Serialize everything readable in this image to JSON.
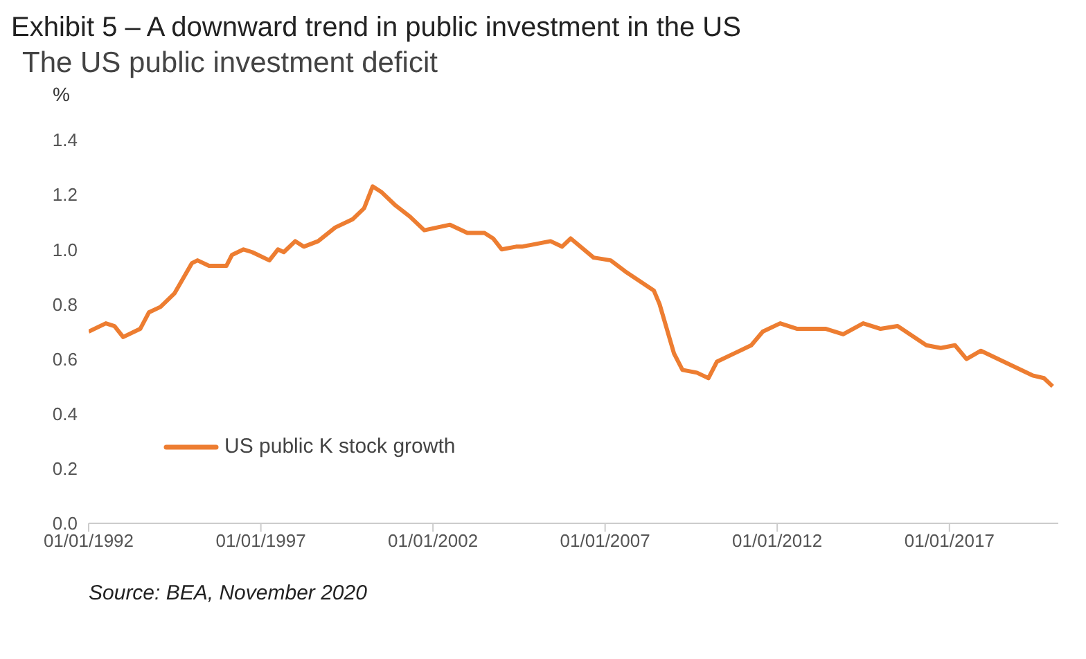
{
  "chart_data": {
    "type": "line",
    "title": "Exhibit 5 – A downward trend in public investment in the US",
    "subtitle": "The US public investment deficit",
    "ylabel": "%",
    "x": [
      "1992-01",
      "1992-07",
      "1992-10",
      "1993-01",
      "1993-07",
      "1993-10",
      "1994-02",
      "1994-07",
      "1995-01",
      "1995-03",
      "1995-07",
      "1996-01",
      "1996-03",
      "1996-07",
      "1996-10",
      "1997-04",
      "1997-07",
      "1997-09",
      "1998-01",
      "1998-04",
      "1998-09",
      "1999-03",
      "1999-09",
      "2000-01",
      "2000-04",
      "2000-07",
      "2000-12",
      "2001-05",
      "2001-10",
      "2002-07",
      "2003-01",
      "2003-07",
      "2003-10",
      "2004-01",
      "2004-06",
      "2004-08",
      "2005-06",
      "2005-10",
      "2006-01",
      "2006-09",
      "2007-03",
      "2007-08",
      "2008-06",
      "2008-08",
      "2009-01",
      "2009-04",
      "2009-09",
      "2010-01",
      "2010-04",
      "2010-10",
      "2011-04",
      "2011-08",
      "2012-02",
      "2012-08",
      "2013-06",
      "2013-12",
      "2014-07",
      "2015-01",
      "2015-07",
      "2016-05",
      "2016-10",
      "2017-03",
      "2017-07",
      "2017-12",
      "2018-10",
      "2019-06",
      "2019-10",
      "2020-01"
    ],
    "series": [
      {
        "name": "US public K stock growth",
        "color": "#ed7d31",
        "values": [
          0.7,
          0.73,
          0.72,
          0.68,
          0.71,
          0.77,
          0.79,
          0.84,
          0.95,
          0.96,
          0.94,
          0.94,
          0.98,
          1.0,
          0.99,
          0.96,
          1.0,
          0.99,
          1.03,
          1.01,
          1.03,
          1.08,
          1.11,
          1.15,
          1.23,
          1.21,
          1.16,
          1.12,
          1.07,
          1.09,
          1.06,
          1.06,
          1.04,
          1.0,
          1.01,
          1.01,
          1.03,
          1.01,
          1.04,
          0.97,
          0.96,
          0.92,
          0.85,
          0.8,
          0.62,
          0.56,
          0.55,
          0.53,
          0.59,
          0.62,
          0.65,
          0.7,
          0.73,
          0.71,
          0.71,
          0.69,
          0.73,
          0.71,
          0.72,
          0.65,
          0.64,
          0.65,
          0.6,
          0.63,
          0.58,
          0.54,
          0.53,
          0.5
        ]
      }
    ],
    "xlim": [
      "1992-01-01",
      "2020-03-01"
    ],
    "xticks": [
      {
        "value": "1992-01-01",
        "label": "01/01/1992"
      },
      {
        "value": "1997-01-01",
        "label": "01/01/1997"
      },
      {
        "value": "2002-01-01",
        "label": "01/01/2002"
      },
      {
        "value": "2007-01-01",
        "label": "01/01/2007"
      },
      {
        "value": "2012-01-01",
        "label": "01/01/2012"
      },
      {
        "value": "2017-01-01",
        "label": "01/01/2017"
      }
    ],
    "ylim": [
      0,
      1.4
    ],
    "yticks": [
      {
        "value": 0,
        "label": "0.0"
      },
      0.2,
      0.4,
      0.6,
      0.8,
      {
        "value": 1,
        "label": "1.0"
      },
      1.2,
      1.4
    ],
    "grid": false,
    "legend": "bottom left",
    "marker": "none",
    "line_style": "solid",
    "annotations": [
      "Source: BEA, November 2020"
    ]
  }
}
